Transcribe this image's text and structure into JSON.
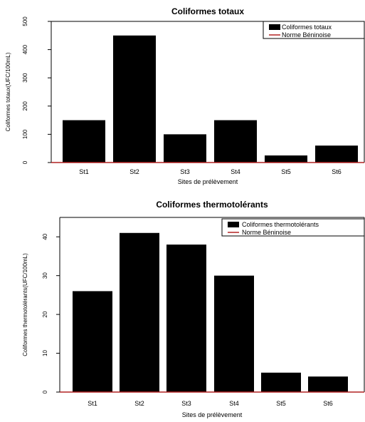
{
  "chart_data": [
    {
      "type": "bar",
      "title": "Coliformes totaux",
      "xlabel": "Sites de prélèvement",
      "ylabel": "Coliformes totaux(UFC/100mL)",
      "categories": [
        "St1",
        "St2",
        "St3",
        "St4",
        "St5",
        "St6"
      ],
      "series": [
        {
          "name": "Coliformes totaux",
          "values": [
            150,
            450,
            100,
            150,
            25,
            60
          ],
          "color": "#000000"
        }
      ],
      "reference_line": {
        "name": "Norme Béninoise",
        "value": 0,
        "color": "#b22222"
      },
      "ylim": [
        0,
        500
      ],
      "yticks": [
        0,
        100,
        200,
        300,
        400,
        500
      ],
      "legend_position": "top-right",
      "grid": false
    },
    {
      "type": "bar",
      "title": "Coliformes thermotolérants",
      "xlabel": "Sites de prélèvement",
      "ylabel": "Coliformes thermotolérants(UFC/100mL)",
      "categories": [
        "St1",
        "St2",
        "St3",
        "St4",
        "St5",
        "St6"
      ],
      "series": [
        {
          "name": "Coliformes thermotolérants",
          "values": [
            26,
            41,
            38,
            30,
            5,
            4
          ],
          "color": "#000000"
        }
      ],
      "reference_line": {
        "name": "Norme Béninoise",
        "value": 0,
        "color": "#b22222"
      },
      "ylim": [
        0,
        45
      ],
      "yticks": [
        0,
        10,
        20,
        30,
        40
      ],
      "legend_position": "top-right",
      "grid": false
    }
  ]
}
